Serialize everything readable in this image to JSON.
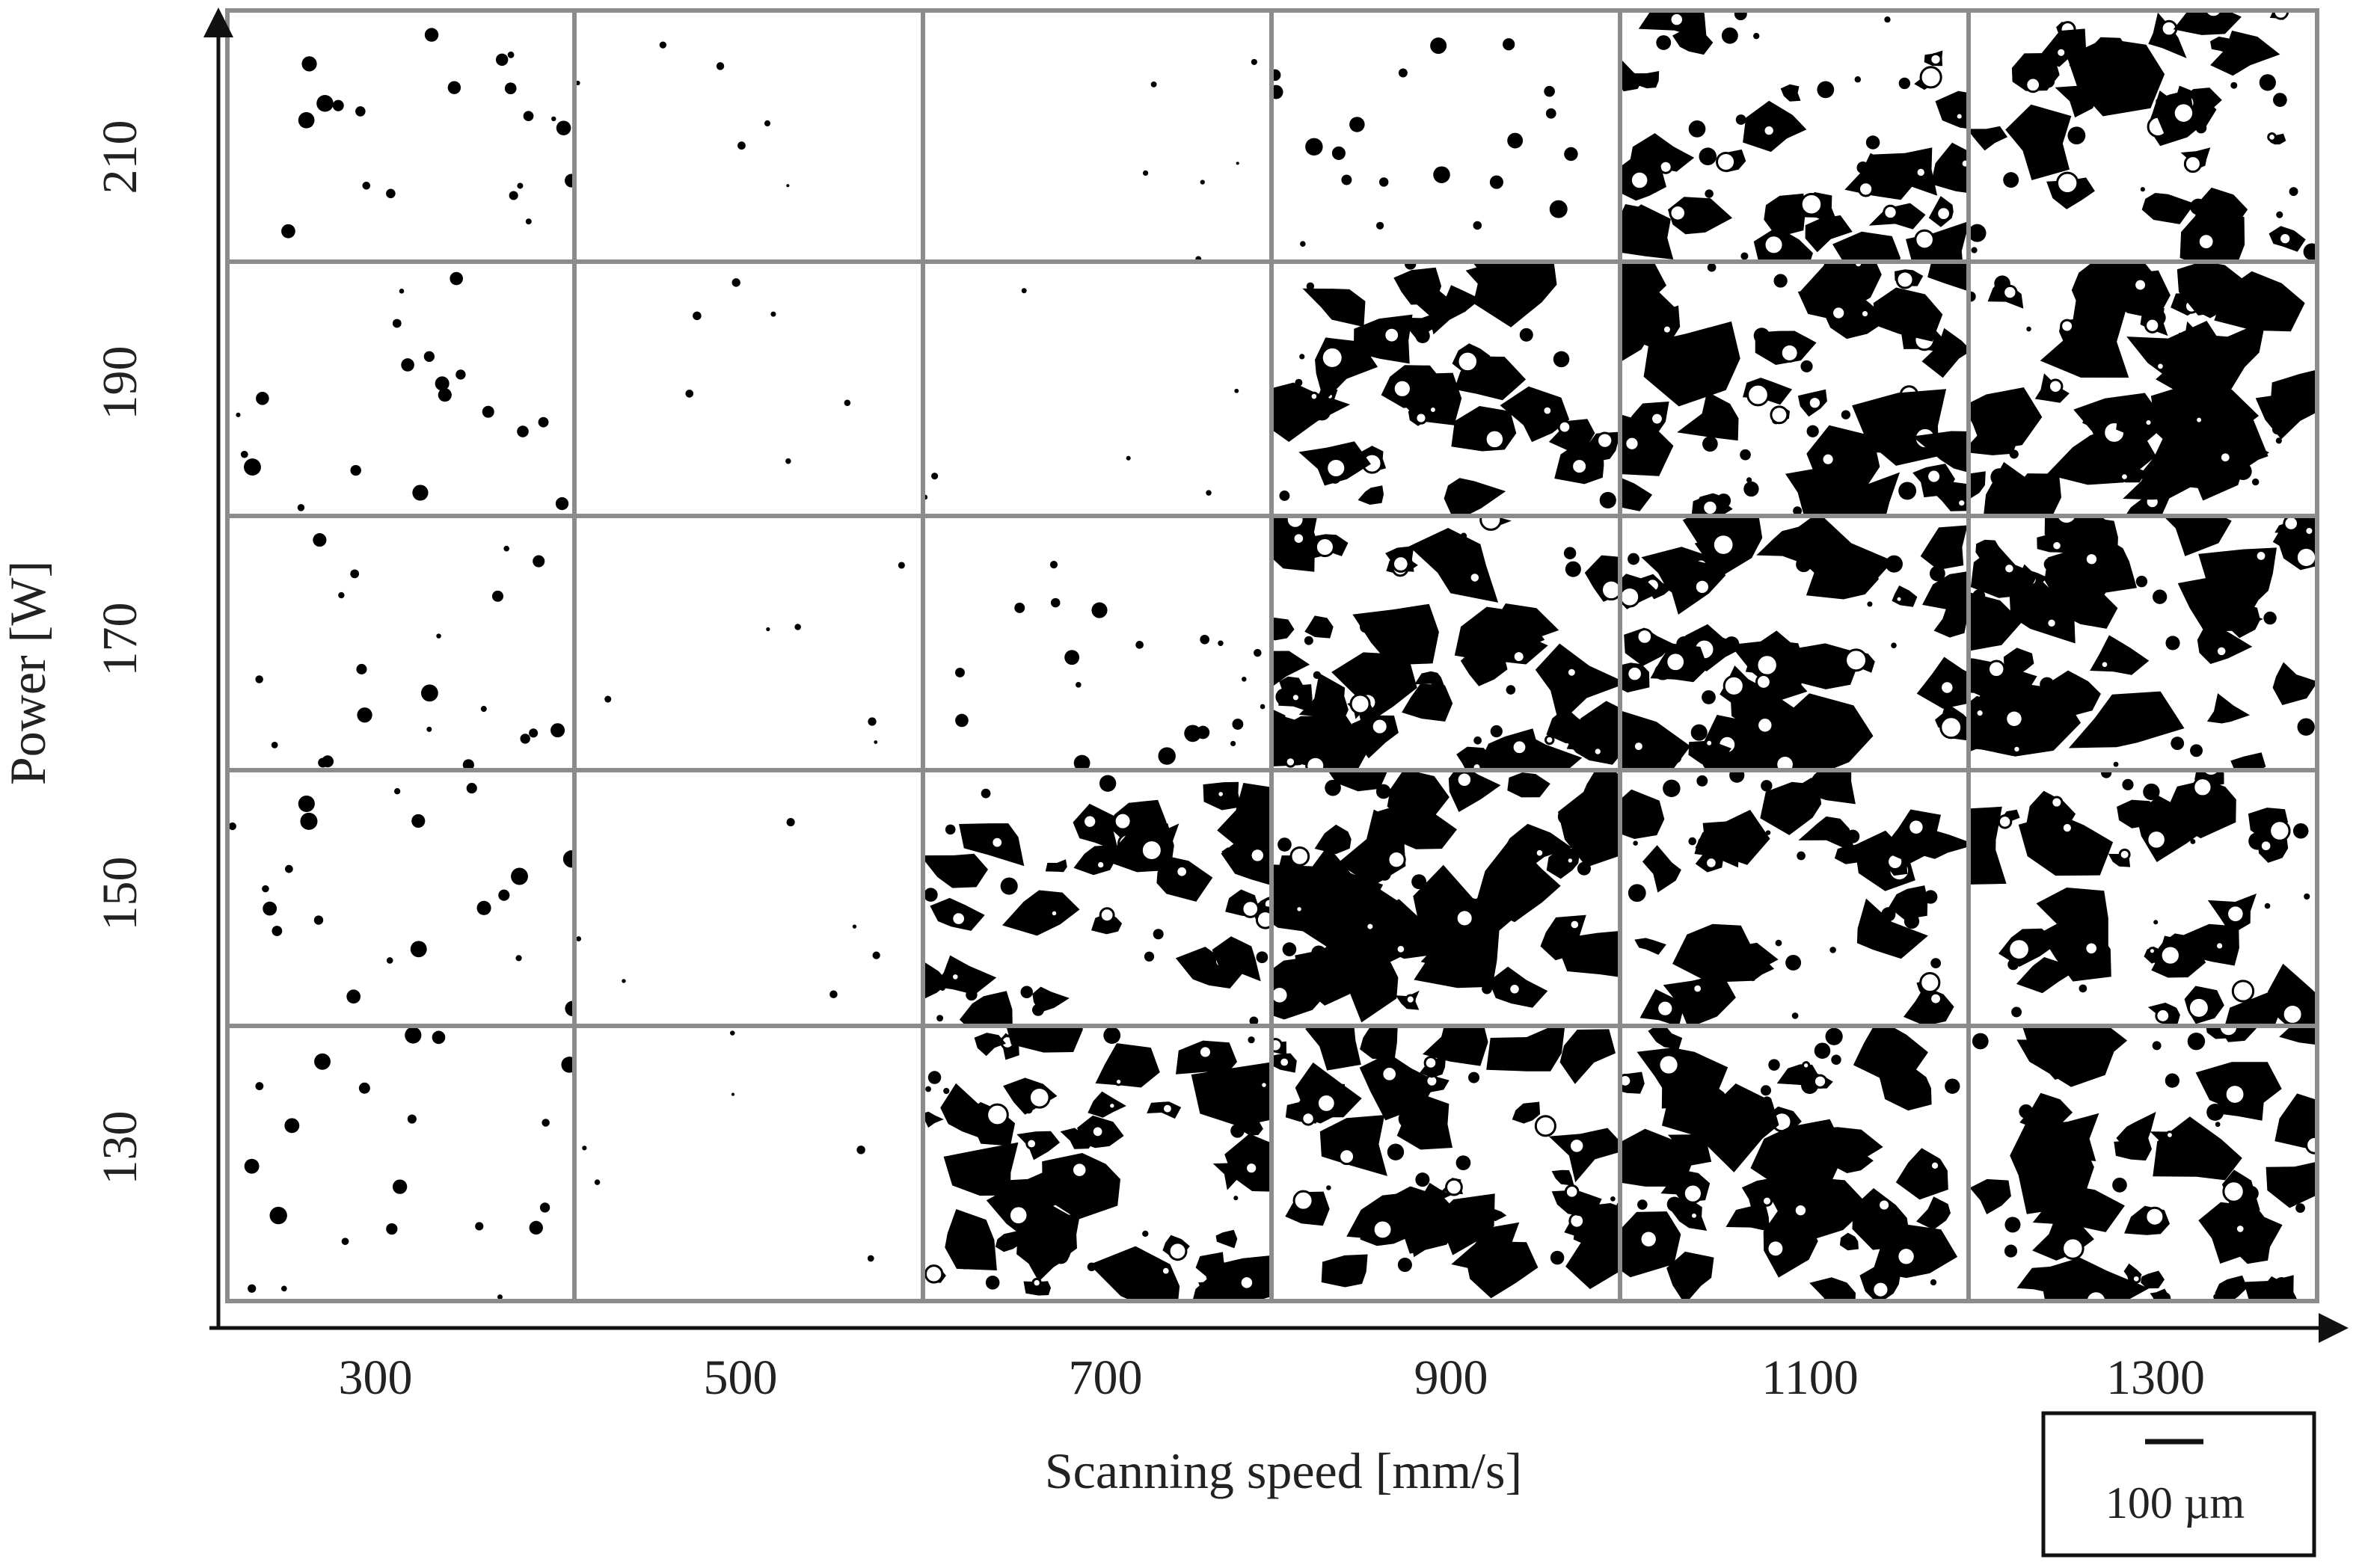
{
  "figure": {
    "y_axis": {
      "label": "Power [W]",
      "ticks": [
        "210",
        "190",
        "170",
        "150",
        "130"
      ]
    },
    "x_axis": {
      "label": "Scanning speed [mm/s]",
      "ticks": [
        "300",
        "500",
        "700",
        "900",
        "1100",
        "1300"
      ]
    },
    "scale_bar": {
      "label": "100 µm"
    },
    "porosity_levels": [
      [
        1,
        0,
        0,
        1,
        4,
        4
      ],
      [
        1,
        0,
        0,
        4,
        5,
        5
      ],
      [
        1,
        0,
        1,
        5,
        5,
        5
      ],
      [
        1,
        0,
        4,
        5,
        4,
        4
      ],
      [
        1,
        0,
        5,
        5,
        5,
        5
      ]
    ],
    "colors": {
      "pore": "#000000",
      "background": "#ffffff",
      "frame": "#8c8c8c",
      "axis": "#111111"
    }
  }
}
